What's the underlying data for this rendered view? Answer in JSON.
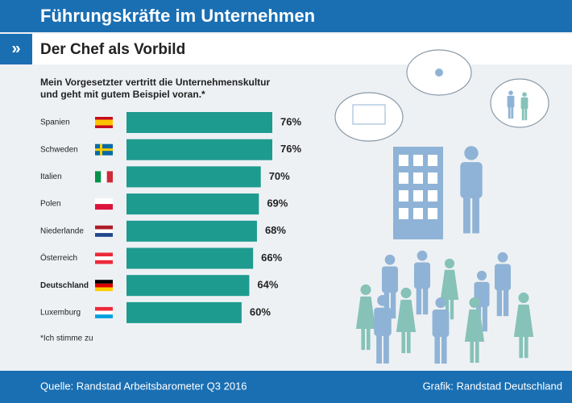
{
  "chart_data": {
    "type": "bar",
    "orientation": "horizontal",
    "title": "Führungskräfte im Unternehmen",
    "marker": "»",
    "subtitle": "Der Chef als Vorbild",
    "question": [
      "Mein Vorgesetzter vertritt die Unternehmenskultur",
      "und geht mit gutem Beispiel voran.*"
    ],
    "categories": [
      "Spanien",
      "Schweden",
      "Italien",
      "Polen",
      "Niederlande",
      "Österreich",
      "Deutschland",
      "Luxemburg"
    ],
    "values": [
      76,
      76,
      70,
      69,
      68,
      66,
      64,
      60
    ],
    "value_labels": [
      "76%",
      "76%",
      "70%",
      "69%",
      "68%",
      "66%",
      "64%",
      "60%"
    ],
    "color": "#1e9b8f",
    "highlight": 6,
    "footnote": "*Ich stimme zu",
    "source": "Quelle: Randstad Arbeitsbarometer Q3 2016",
    "credit": "Grafik: Randstad Deutschland"
  }
}
